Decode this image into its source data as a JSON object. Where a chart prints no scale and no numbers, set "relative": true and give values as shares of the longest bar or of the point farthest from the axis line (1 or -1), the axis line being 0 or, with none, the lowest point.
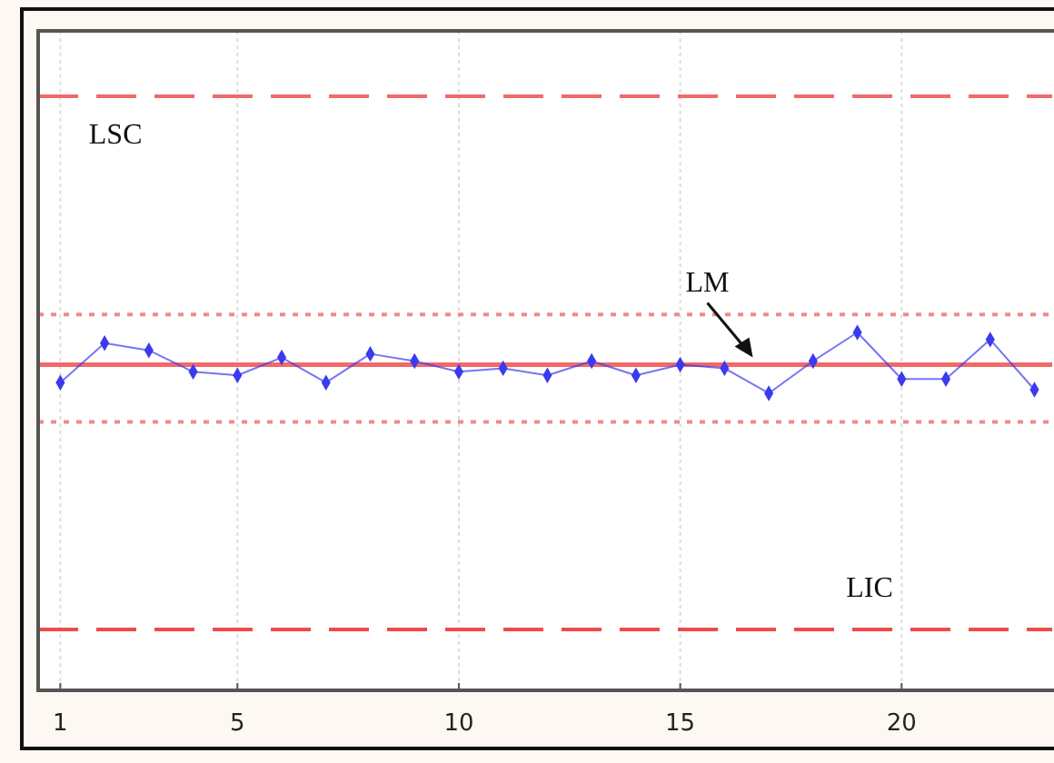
{
  "chart_data": {
    "type": "line",
    "relative": true,
    "x": [
      1,
      2,
      3,
      4,
      5,
      6,
      7,
      8,
      9,
      10,
      11,
      12,
      13,
      14,
      15,
      16,
      17,
      18,
      19,
      20,
      21,
      22,
      23
    ],
    "series": [
      {
        "color": "#3a3aee",
        "values": [
          0.86,
          0.97,
          0.95,
          0.89,
          0.88,
          0.93,
          0.86,
          0.94,
          0.92,
          0.89,
          0.9,
          0.88,
          0.92,
          0.88,
          0.91,
          0.9,
          0.83,
          0.92,
          1,
          0.87,
          0.87,
          0.98,
          0.84
        ]
      }
    ],
    "xlim": [
      0.5,
      23.4
    ],
    "xticks": [
      1,
      5,
      10,
      15,
      20
    ],
    "grid": "x",
    "marker": "diamond",
    "line_style": "solid",
    "ref_lines": [
      {
        "axis": "y",
        "value": 1.66,
        "label": "LSC",
        "color": "#f06a6a",
        "line_style": "dashed"
      },
      {
        "axis": "y",
        "value": 1.05,
        "label": null,
        "color": "#f08a8a",
        "line_style": "dotted"
      },
      {
        "axis": "y",
        "value": 0.91,
        "label": "LM",
        "color": "#f06a6a",
        "line_style": "solid"
      },
      {
        "axis": "y",
        "value": 0.75,
        "label": null,
        "color": "#f08a8a",
        "line_style": "dotted"
      },
      {
        "axis": "y",
        "value": 0.17,
        "label": "LIC",
        "color": "#f04a4a",
        "line_style": "dashed"
      }
    ]
  }
}
